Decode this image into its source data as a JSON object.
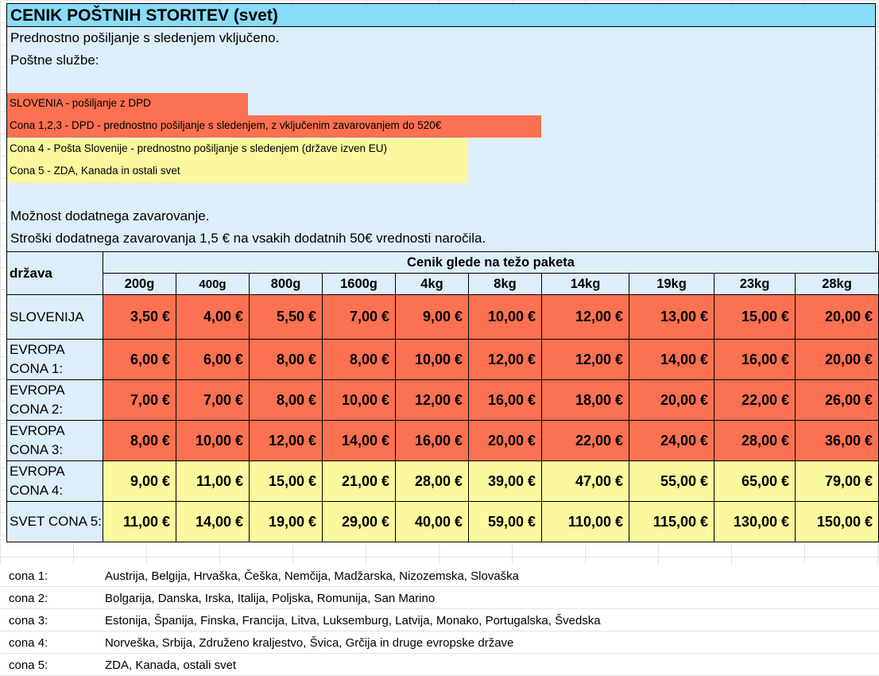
{
  "title": "CENIK POŠTNIH STORITEV (svet)",
  "info": {
    "line1": "Prednostno pošiljanje s sledenjem vključeno.",
    "line2": "Poštne službe:",
    "band_slovenia": "SLOVENIA  - pošiljanje z DPD",
    "band_cona123": "Cona 1,2,3 - DPD - prednostno pošiljanje s sledenjem, z vključenim zavarovanjem do 520€",
    "band_cona4": "Cona 4 - Pošta Slovenije  - prednostno pošiljanje s sledenjem (države izven EU)",
    "band_cona5": "Cona 5 - ZDA, Kanada in ostali svet",
    "line3": "Možnost dodatnega zavarovanje.",
    "line4": "Stroški dodatnega zavarovanja 1,5 € na vsakih dodatnih 50€ vrednosti naročila."
  },
  "colors": {
    "title_bg": "#89dcf8",
    "info_bg": "#ddeefb",
    "red": "#fb7151",
    "yellow": "#fbf89d"
  },
  "table": {
    "country_header": "država",
    "group_header": "Cenik glede na težo paketa",
    "weights": [
      "200g",
      "400g",
      "800g",
      "1600g",
      "4kg",
      "8kg",
      "14kg",
      "19kg",
      "23kg",
      "28kg"
    ],
    "rows": [
      {
        "country": "SLOVENIJA",
        "tone": "red",
        "prices": [
          "3,50 €",
          "4,00 €",
          "5,50 €",
          "7,00 €",
          "9,00 €",
          "10,00 €",
          "12,00 €",
          "13,00 €",
          "15,00 €",
          "20,00 €"
        ]
      },
      {
        "country": "EVROPA CONA 1:",
        "tone": "red",
        "prices": [
          "6,00 €",
          "6,00 €",
          "8,00 €",
          "8,00 €",
          "10,00 €",
          "12,00 €",
          "12,00 €",
          "14,00 €",
          "16,00 €",
          "20,00 €"
        ]
      },
      {
        "country": "EVROPA CONA 2:",
        "tone": "red",
        "prices": [
          "7,00 €",
          "7,00 €",
          "8,00 €",
          "10,00 €",
          "12,00 €",
          "16,00 €",
          "18,00 €",
          "20,00 €",
          "22,00 €",
          "26,00 €"
        ]
      },
      {
        "country": "EVROPA CONA 3:",
        "tone": "red",
        "prices": [
          "8,00 €",
          "10,00 €",
          "12,00 €",
          "14,00 €",
          "16,00 €",
          "20,00 €",
          "22,00 €",
          "24,00 €",
          "28,00 €",
          "36,00 €"
        ]
      },
      {
        "country": "EVROPA CONA 4:",
        "tone": "yellow",
        "prices": [
          "9,00 €",
          "11,00 €",
          "15,00 €",
          "21,00 €",
          "28,00 €",
          "39,00 €",
          "47,00 €",
          "55,00 €",
          "65,00 €",
          "79,00 €"
        ]
      },
      {
        "country": "SVET CONA 5:",
        "tone": "yellow",
        "prices": [
          "11,00 €",
          "14,00 €",
          "19,00 €",
          "29,00 €",
          "40,00 €",
          "59,00 €",
          "110,00 €",
          "115,00 €",
          "130,00 €",
          "150,00 €"
        ]
      }
    ]
  },
  "zones": [
    {
      "key": "cona 1:",
      "countries": "Austrija, Belgija, Hrvaška, Češka, Nemčija, Madžarska, Nizozemska, Slovaška"
    },
    {
      "key": "cona 2:",
      "countries": "Bolgarija, Danska, Irska, Italija, Poljska, Romunija, San Marino"
    },
    {
      "key": "cona 3:",
      "countries": "Estonija, Španija, Finska, Francija, Litva, Luksemburg, Latvija, Monako, Portugalska, Švedska"
    },
    {
      "key": "cona 4:",
      "countries": "Norveška, Srbija, Združeno kraljestvo, Švica, Grčija in druge evropske države"
    },
    {
      "key": "cona 5:",
      "countries": "ZDA, Kanada, ostali svet"
    }
  ]
}
